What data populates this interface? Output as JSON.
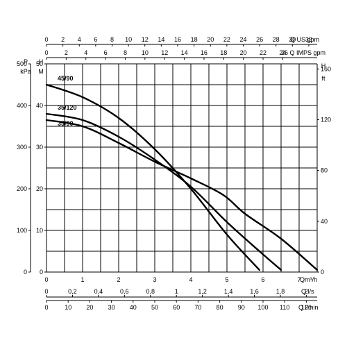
{
  "chart_data": {
    "type": "line",
    "title": "",
    "x_axes": {
      "q_m3h": {
        "label": "Qm³/h",
        "ticks": [
          "0",
          "1",
          "2",
          "3",
          "4",
          "5",
          "6",
          "7"
        ],
        "range": [
          0,
          7.5
        ]
      },
      "q_us_gpm": {
        "label": "Q US gpm",
        "ticks": [
          "0",
          "2",
          "4",
          "6",
          "8",
          "10",
          "12",
          "14",
          "16",
          "18",
          "20",
          "22",
          "24",
          "26",
          "28",
          "30",
          "32"
        ]
      },
      "q_imps_gpm": {
        "label": "26 Q IMPS gpm",
        "ticks": [
          "0",
          "2",
          "4",
          "6",
          "8",
          "10",
          "12",
          "14",
          "16",
          "18",
          "20",
          "22",
          "24"
        ]
      },
      "q_ls": {
        "label": "Q l/s",
        "ticks": [
          "0",
          "0,2",
          "0,4",
          "0,6",
          "0,8",
          "1",
          "1,2",
          "1,4",
          "1,6",
          "1,8",
          "2"
        ]
      },
      "q_lmin": {
        "label": "Q l/min",
        "ticks": [
          "0",
          "10",
          "20",
          "30",
          "40",
          "50",
          "60",
          "70",
          "80",
          "90",
          "100",
          "110",
          "120"
        ]
      }
    },
    "y_axes": {
      "p_kpa": {
        "label_top": "P",
        "label_unit": "kPa",
        "ticks": [
          "0",
          "100",
          "200",
          "300",
          "400",
          "500"
        ]
      },
      "h_m": {
        "label_top": "H",
        "label_unit": "M",
        "ticks": [
          "0",
          "10",
          "20",
          "30",
          "40",
          "50"
        ],
        "range": [
          0,
          50
        ]
      },
      "h_ft": {
        "label_top": "H",
        "label_unit": "ft",
        "ticks": [
          "0",
          "40",
          "80",
          "120",
          "160"
        ]
      }
    },
    "grid": true,
    "series": [
      {
        "name": "45/90",
        "x": [
          0,
          1,
          2,
          3,
          4,
          5,
          5.9
        ],
        "y": [
          45,
          42,
          37,
          29.5,
          20,
          9,
          0.5
        ]
      },
      {
        "name": "35/120",
        "x": [
          0,
          1,
          2,
          3,
          4,
          5,
          5.9,
          6.5
        ],
        "y": [
          38,
          36.5,
          32.5,
          27,
          20.5,
          12,
          5,
          0.5
        ]
      },
      {
        "name": "35/90",
        "x": [
          0,
          1,
          2,
          3,
          4,
          4.9,
          5.5,
          6.5,
          7.5
        ],
        "y": [
          36.5,
          35,
          31,
          26.5,
          22.5,
          18.5,
          14,
          8,
          0.5
        ]
      }
    ]
  }
}
